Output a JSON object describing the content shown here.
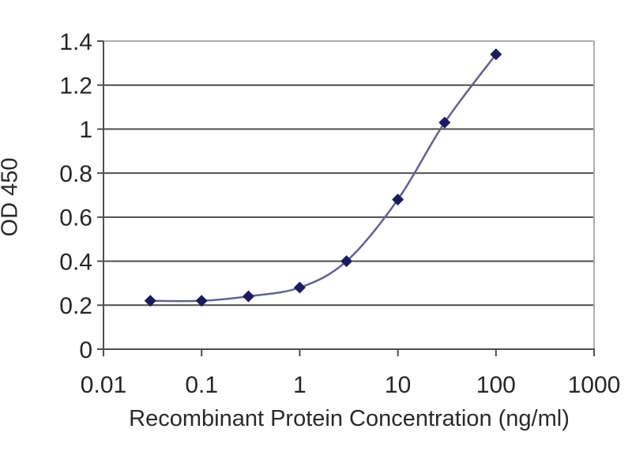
{
  "chart_data": {
    "type": "line",
    "title": "",
    "xlabel": "Recombinant Protein Concentration (ng/ml)",
    "ylabel": "OD 450",
    "x_scale": "log",
    "xlim": [
      0.01,
      1000
    ],
    "ylim": [
      0,
      1.4
    ],
    "x_ticks": [
      0.01,
      0.1,
      1,
      10,
      100,
      1000
    ],
    "x_tick_labels": [
      "0.01",
      "0.1",
      "1",
      "10",
      "100",
      "1000"
    ],
    "y_ticks": [
      0,
      0.2,
      0.4,
      0.6,
      0.8,
      1,
      1.2,
      1.4
    ],
    "y_tick_labels": [
      "0",
      "0.2",
      "0.4",
      "0.6",
      "0.8",
      "1",
      "1.2",
      "1.4"
    ],
    "grid": "horizontal-only",
    "legend": "none",
    "series": [
      {
        "name": "OD 450 standard curve",
        "marker": "diamond",
        "x": [
          0.03,
          0.1,
          0.3,
          1,
          3,
          10,
          30,
          100
        ],
        "y": [
          0.22,
          0.22,
          0.24,
          0.28,
          0.4,
          0.68,
          1.03,
          1.34
        ]
      }
    ]
  },
  "colors": {
    "background": "#ffffff",
    "gridline": "#4f4f4f",
    "axis_line": "#4f4f4f",
    "border_light": "#aeaeae",
    "tick": "#4f4f4f",
    "label_text": "#262626",
    "series_line": "#62628f",
    "marker_fill": "#1b1b5e"
  }
}
